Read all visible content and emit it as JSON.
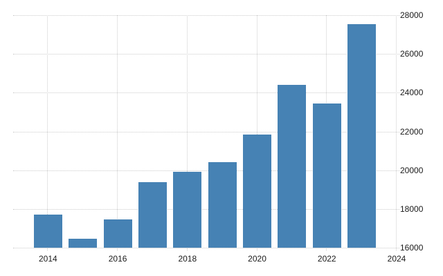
{
  "chart_data": {
    "type": "bar",
    "categories": [
      2014,
      2015,
      2016,
      2017,
      2018,
      2019,
      2020,
      2021,
      2022,
      2023
    ],
    "values": [
      17700,
      16450,
      17450,
      19400,
      19900,
      20400,
      21850,
      24400,
      23450,
      27550
    ],
    "x_ticks": [
      2014,
      2016,
      2018,
      2020,
      2022,
      2024
    ],
    "y_ticks": [
      16000,
      18000,
      20000,
      22000,
      24000,
      26000,
      28000
    ],
    "x_domain": [
      2013,
      2024
    ],
    "ylim": [
      16000,
      28000
    ],
    "grid": "dotted",
    "legend": "none",
    "y_axis_side": "right",
    "colors": {
      "bar": "#4682b4",
      "grid": "#cccccc",
      "text": "#1a1a1a",
      "background": "#ffffff"
    }
  }
}
